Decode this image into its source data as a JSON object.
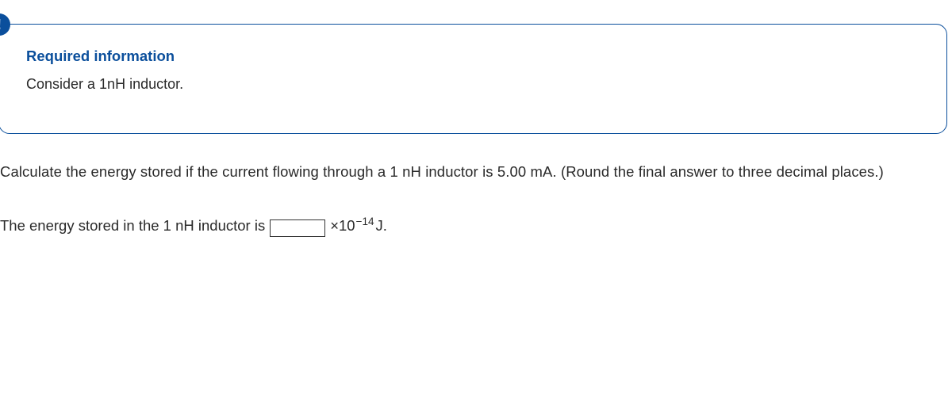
{
  "card": {
    "badge_glyph": "!",
    "heading": "Required information",
    "body": "Consider a 1nH inductor."
  },
  "question": {
    "prompt": "Calculate the energy stored if the current flowing through a 1 nH inductor is 5.00 mA. (Round the final answer to three decimal places.)",
    "answer_prefix": "The energy stored in the 1 nH inductor is",
    "input_value": "",
    "times_base": "×10",
    "exponent": "−14",
    "unit_suffix": " J."
  },
  "colors": {
    "accent": "#0b4f9c",
    "text": "#2a2a2a",
    "background": "#ffffff",
    "input_border": "#333333"
  }
}
